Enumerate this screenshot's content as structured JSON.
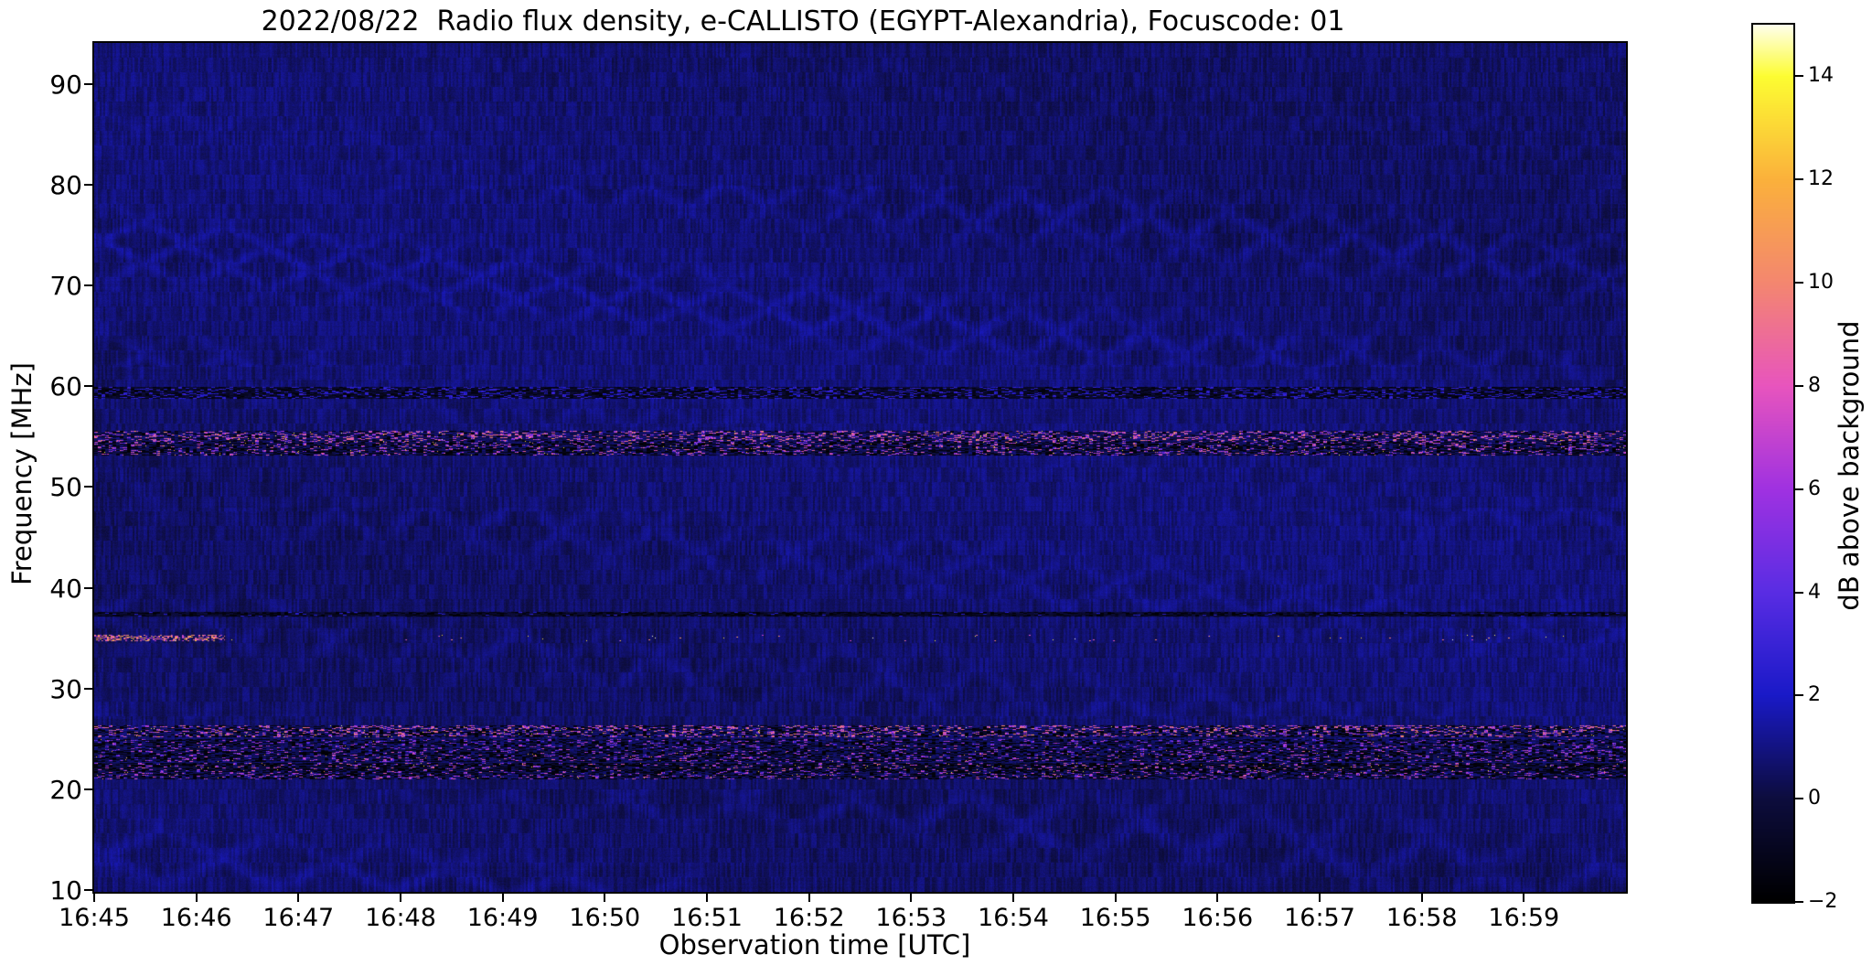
{
  "figure": {
    "background_color": "#ffffff",
    "date": "2022/08/22",
    "instrument": "e-CALLISTO",
    "station": "EGYPT-Alexandria",
    "focuscode": "01"
  },
  "chart_data": {
    "type": "heatmap",
    "subtype": "radio-spectrogram",
    "title": "2022/08/22  Radio flux density, e-CALLISTO (EGYPT-Alexandria), Focuscode: 01",
    "xlabel": "Observation time [UTC]",
    "ylabel": "Frequency [MHz]",
    "grid": false,
    "legend": null,
    "x_tick_labels": [
      "16:45",
      "16:46",
      "16:47",
      "16:48",
      "16:49",
      "16:50",
      "16:51",
      "16:52",
      "16:53",
      "16:54",
      "16:55",
      "16:56",
      "16:57",
      "16:58",
      "16:59"
    ],
    "x_start": "16:45",
    "x_end": "17:00",
    "x_total_minutes": 15,
    "y_tick_values": [
      90,
      80,
      70,
      60,
      50,
      40,
      30,
      20,
      10
    ],
    "y_tick_labels": [
      "90",
      "80",
      "70",
      "60",
      "50",
      "40",
      "30",
      "20",
      "10"
    ],
    "y_range": [
      9.8,
      94.1
    ],
    "colorbar": {
      "label": "dB above background",
      "tick_values": [
        14,
        12,
        10,
        8,
        6,
        4,
        2,
        0,
        -2
      ],
      "tick_labels": [
        "14",
        "12",
        "10",
        "8",
        "6",
        "4",
        "2",
        "0",
        "−2"
      ],
      "range": [
        -2,
        15
      ],
      "colormap": "gnuplot2-like",
      "stops": [
        {
          "v": -2,
          "color": "#000000"
        },
        {
          "v": 0,
          "color": "#0d0d3e"
        },
        {
          "v": 2,
          "color": "#1a1ac8"
        },
        {
          "v": 4,
          "color": "#5a2de4"
        },
        {
          "v": 6,
          "color": "#a032e1"
        },
        {
          "v": 8,
          "color": "#e855be"
        },
        {
          "v": 10,
          "color": "#f48770"
        },
        {
          "v": 12,
          "color": "#fbb13c"
        },
        {
          "v": 14,
          "color": "#fdfd32"
        },
        {
          "v": 15,
          "color": "#ffffeb"
        }
      ]
    },
    "background_level_db": 0.6,
    "wave_regions": [
      {
        "f_lo": 80,
        "f_hi": 94.2,
        "amplitude": 0.22,
        "scale_x": 13,
        "scale_y": 8
      },
      {
        "f_lo": 62,
        "f_hi": 80,
        "amplitude": 0.6,
        "scale_x": 14.5,
        "scale_y": 8.5
      },
      {
        "f_lo": 56,
        "f_hi": 62,
        "amplitude": 0.3,
        "scale_x": 14,
        "scale_y": 9
      },
      {
        "f_lo": 48,
        "f_hi": 56,
        "amplitude": 0.22,
        "scale_x": 15,
        "scale_y": 9
      },
      {
        "f_lo": 27,
        "f_hi": 48,
        "amplitude": 0.42,
        "scale_x": 16,
        "scale_y": 9.5
      },
      {
        "f_lo": 20,
        "f_hi": 27,
        "amplitude": 0.18,
        "scale_x": 17,
        "scale_y": 10
      },
      {
        "f_lo": 9.7,
        "f_hi": 20,
        "amplitude": 0.55,
        "scale_x": 20,
        "scale_y": 11
      }
    ],
    "rfi_bands": [
      {
        "name": "59-60 MHz RFI dark speckled band",
        "f_lo": 58.8,
        "f_hi": 60.0,
        "base": -0.9,
        "dark_p": 0.22,
        "spike_p": 0.3,
        "spike_lo": 1.4,
        "spike_hi": 3.4,
        "rare_p": 0,
        "rare_lo": 0,
        "rare_hi": 0,
        "overlay": false,
        "left_frac": 0,
        "left_spike_p": 0
      },
      {
        "name": "55 MHz RFI bright speckled band",
        "f_lo": 54.6,
        "f_hi": 55.6,
        "base": 0.2,
        "dark_p": 0.18,
        "spike_p": 0.3,
        "spike_lo": 3,
        "spike_hi": 11,
        "rare_p": 0.005,
        "rare_lo": 12,
        "rare_hi": 15,
        "overlay": false,
        "left_frac": 0,
        "left_spike_p": 0
      },
      {
        "name": "54 MHz RFI dark+pink speckled band",
        "f_lo": 53.2,
        "f_hi": 54.6,
        "base": 0.0,
        "dark_p": 0.38,
        "spike_p": 0.24,
        "spike_lo": 2,
        "spike_hi": 10,
        "rare_p": 0.005,
        "rare_lo": 11,
        "rare_hi": 14.5,
        "overlay": false,
        "left_frac": 0,
        "left_spike_p": 0
      },
      {
        "name": "37.4 MHz dark dotted line",
        "f_lo": 37.2,
        "f_hi": 37.6,
        "base": -0.8,
        "dark_p": 0.5,
        "spike_p": 0.06,
        "spike_lo": 1.5,
        "spike_hi": 3,
        "rare_p": 0,
        "rare_lo": 0,
        "rare_hi": 0,
        "overlay": false,
        "left_frac": 0,
        "left_spike_p": 0
      },
      {
        "name": "35 MHz intermittent carrier",
        "f_lo": 34.7,
        "f_hi": 35.4,
        "base": 0.0,
        "dark_p": 0,
        "spike_p": 0.006,
        "spike_lo": 5,
        "spike_hi": 13,
        "rare_p": 0.002,
        "rare_lo": 13,
        "rare_hi": 15,
        "overlay": true,
        "left_frac": 0.085,
        "left_spike_p": 0.45
      },
      {
        "name": "25-26 MHz HF broadcast RFI",
        "f_lo": 25.2,
        "f_hi": 26.35,
        "base": 0.2,
        "dark_p": 0.3,
        "spike_p": 0.3,
        "spike_lo": 3,
        "spike_hi": 11,
        "rare_p": 0.006,
        "rare_lo": 12,
        "rare_hi": 15,
        "overlay": false,
        "left_frac": 0,
        "left_spike_p": 0
      },
      {
        "name": "24-25 MHz RFI",
        "f_lo": 23.95,
        "f_hi": 25.0,
        "base": 0.1,
        "dark_p": 0.35,
        "spike_p": 0.18,
        "spike_lo": 2,
        "spike_hi": 8,
        "rare_p": 0.002,
        "rare_lo": 9,
        "rare_hi": 13,
        "overlay": false,
        "left_frac": 0,
        "left_spike_p": 0
      },
      {
        "name": "23 MHz RFI",
        "f_lo": 22.7,
        "f_hi": 23.9,
        "base": 0.0,
        "dark_p": 0.38,
        "spike_p": 0.2,
        "spike_lo": 2,
        "spike_hi": 9,
        "rare_p": 0.003,
        "rare_lo": 10,
        "rare_hi": 13,
        "overlay": false,
        "left_frac": 0,
        "left_spike_p": 0
      },
      {
        "name": "22 MHz RFI dark band",
        "f_lo": 21.85,
        "f_hi": 22.65,
        "base": -0.3,
        "dark_p": 0.5,
        "spike_p": 0.18,
        "spike_lo": 2,
        "spike_hi": 10,
        "rare_p": 0.004,
        "rare_lo": 11,
        "rare_hi": 14,
        "overlay": false,
        "left_frac": 0,
        "left_spike_p": 0
      },
      {
        "name": "21 MHz RFI",
        "f_lo": 21.0,
        "f_hi": 21.8,
        "base": 0.0,
        "dark_p": 0.35,
        "spike_p": 0.22,
        "spike_lo": 2,
        "spike_hi": 9,
        "rare_p": 0.005,
        "rare_lo": 10,
        "rare_hi": 14,
        "overlay": false,
        "left_frac": 0,
        "left_spike_p": 0
      }
    ]
  }
}
